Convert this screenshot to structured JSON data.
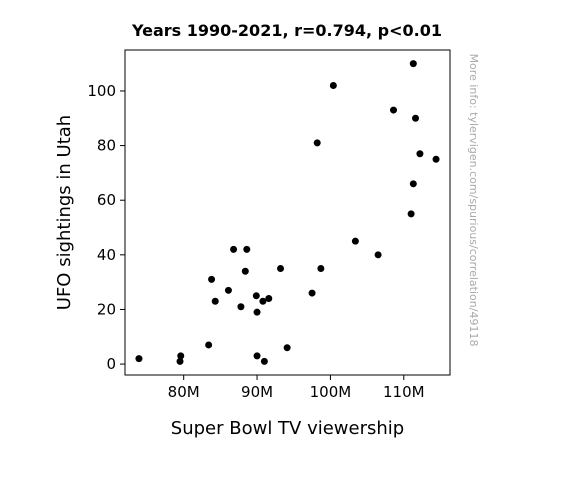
{
  "chart_data": {
    "type": "scatter",
    "title": "Years 1990-2021, r=0.794, p<0.01",
    "xlabel": "Super Bowl TV viewership",
    "ylabel": "UFO sightings in Utah",
    "side_note": "More info: tylervigen.com/spurious/correlation/49118",
    "xlim": [
      72,
      116.3
    ],
    "ylim": [
      -4,
      115
    ],
    "x_ticks": [
      {
        "value": 80,
        "label": "80M"
      },
      {
        "value": 90,
        "label": "90M"
      },
      {
        "value": 100,
        "label": "100M"
      },
      {
        "value": 110,
        "label": "110M"
      }
    ],
    "y_ticks": [
      {
        "value": 0,
        "label": "0"
      },
      {
        "value": 20,
        "label": "20"
      },
      {
        "value": 40,
        "label": "40"
      },
      {
        "value": 60,
        "label": "60"
      },
      {
        "value": 80,
        "label": "80"
      },
      {
        "value": 100,
        "label": "100"
      }
    ],
    "grid": false,
    "marker_color": "#000000",
    "points": [
      {
        "x": 73.9,
        "y": 2
      },
      {
        "x": 79.5,
        "y": 1
      },
      {
        "x": 79.6,
        "y": 3
      },
      {
        "x": 83.4,
        "y": 7
      },
      {
        "x": 83.8,
        "y": 31
      },
      {
        "x": 84.3,
        "y": 23
      },
      {
        "x": 86.1,
        "y": 27
      },
      {
        "x": 86.8,
        "y": 42
      },
      {
        "x": 87.8,
        "y": 21
      },
      {
        "x": 88.4,
        "y": 34
      },
      {
        "x": 88.6,
        "y": 42
      },
      {
        "x": 89.9,
        "y": 25
      },
      {
        "x": 90.0,
        "y": 19
      },
      {
        "x": 90.0,
        "y": 3
      },
      {
        "x": 90.8,
        "y": 23
      },
      {
        "x": 91.0,
        "y": 1
      },
      {
        "x": 91.6,
        "y": 24
      },
      {
        "x": 93.2,
        "y": 35
      },
      {
        "x": 94.1,
        "y": 6
      },
      {
        "x": 97.5,
        "y": 26
      },
      {
        "x": 98.2,
        "y": 81
      },
      {
        "x": 98.7,
        "y": 35
      },
      {
        "x": 100.4,
        "y": 102
      },
      {
        "x": 103.4,
        "y": 45
      },
      {
        "x": 106.5,
        "y": 40
      },
      {
        "x": 108.6,
        "y": 93
      },
      {
        "x": 111.0,
        "y": 55
      },
      {
        "x": 111.3,
        "y": 66
      },
      {
        "x": 111.3,
        "y": 110
      },
      {
        "x": 111.6,
        "y": 90
      },
      {
        "x": 112.2,
        "y": 77
      },
      {
        "x": 114.4,
        "y": 75
      }
    ]
  }
}
